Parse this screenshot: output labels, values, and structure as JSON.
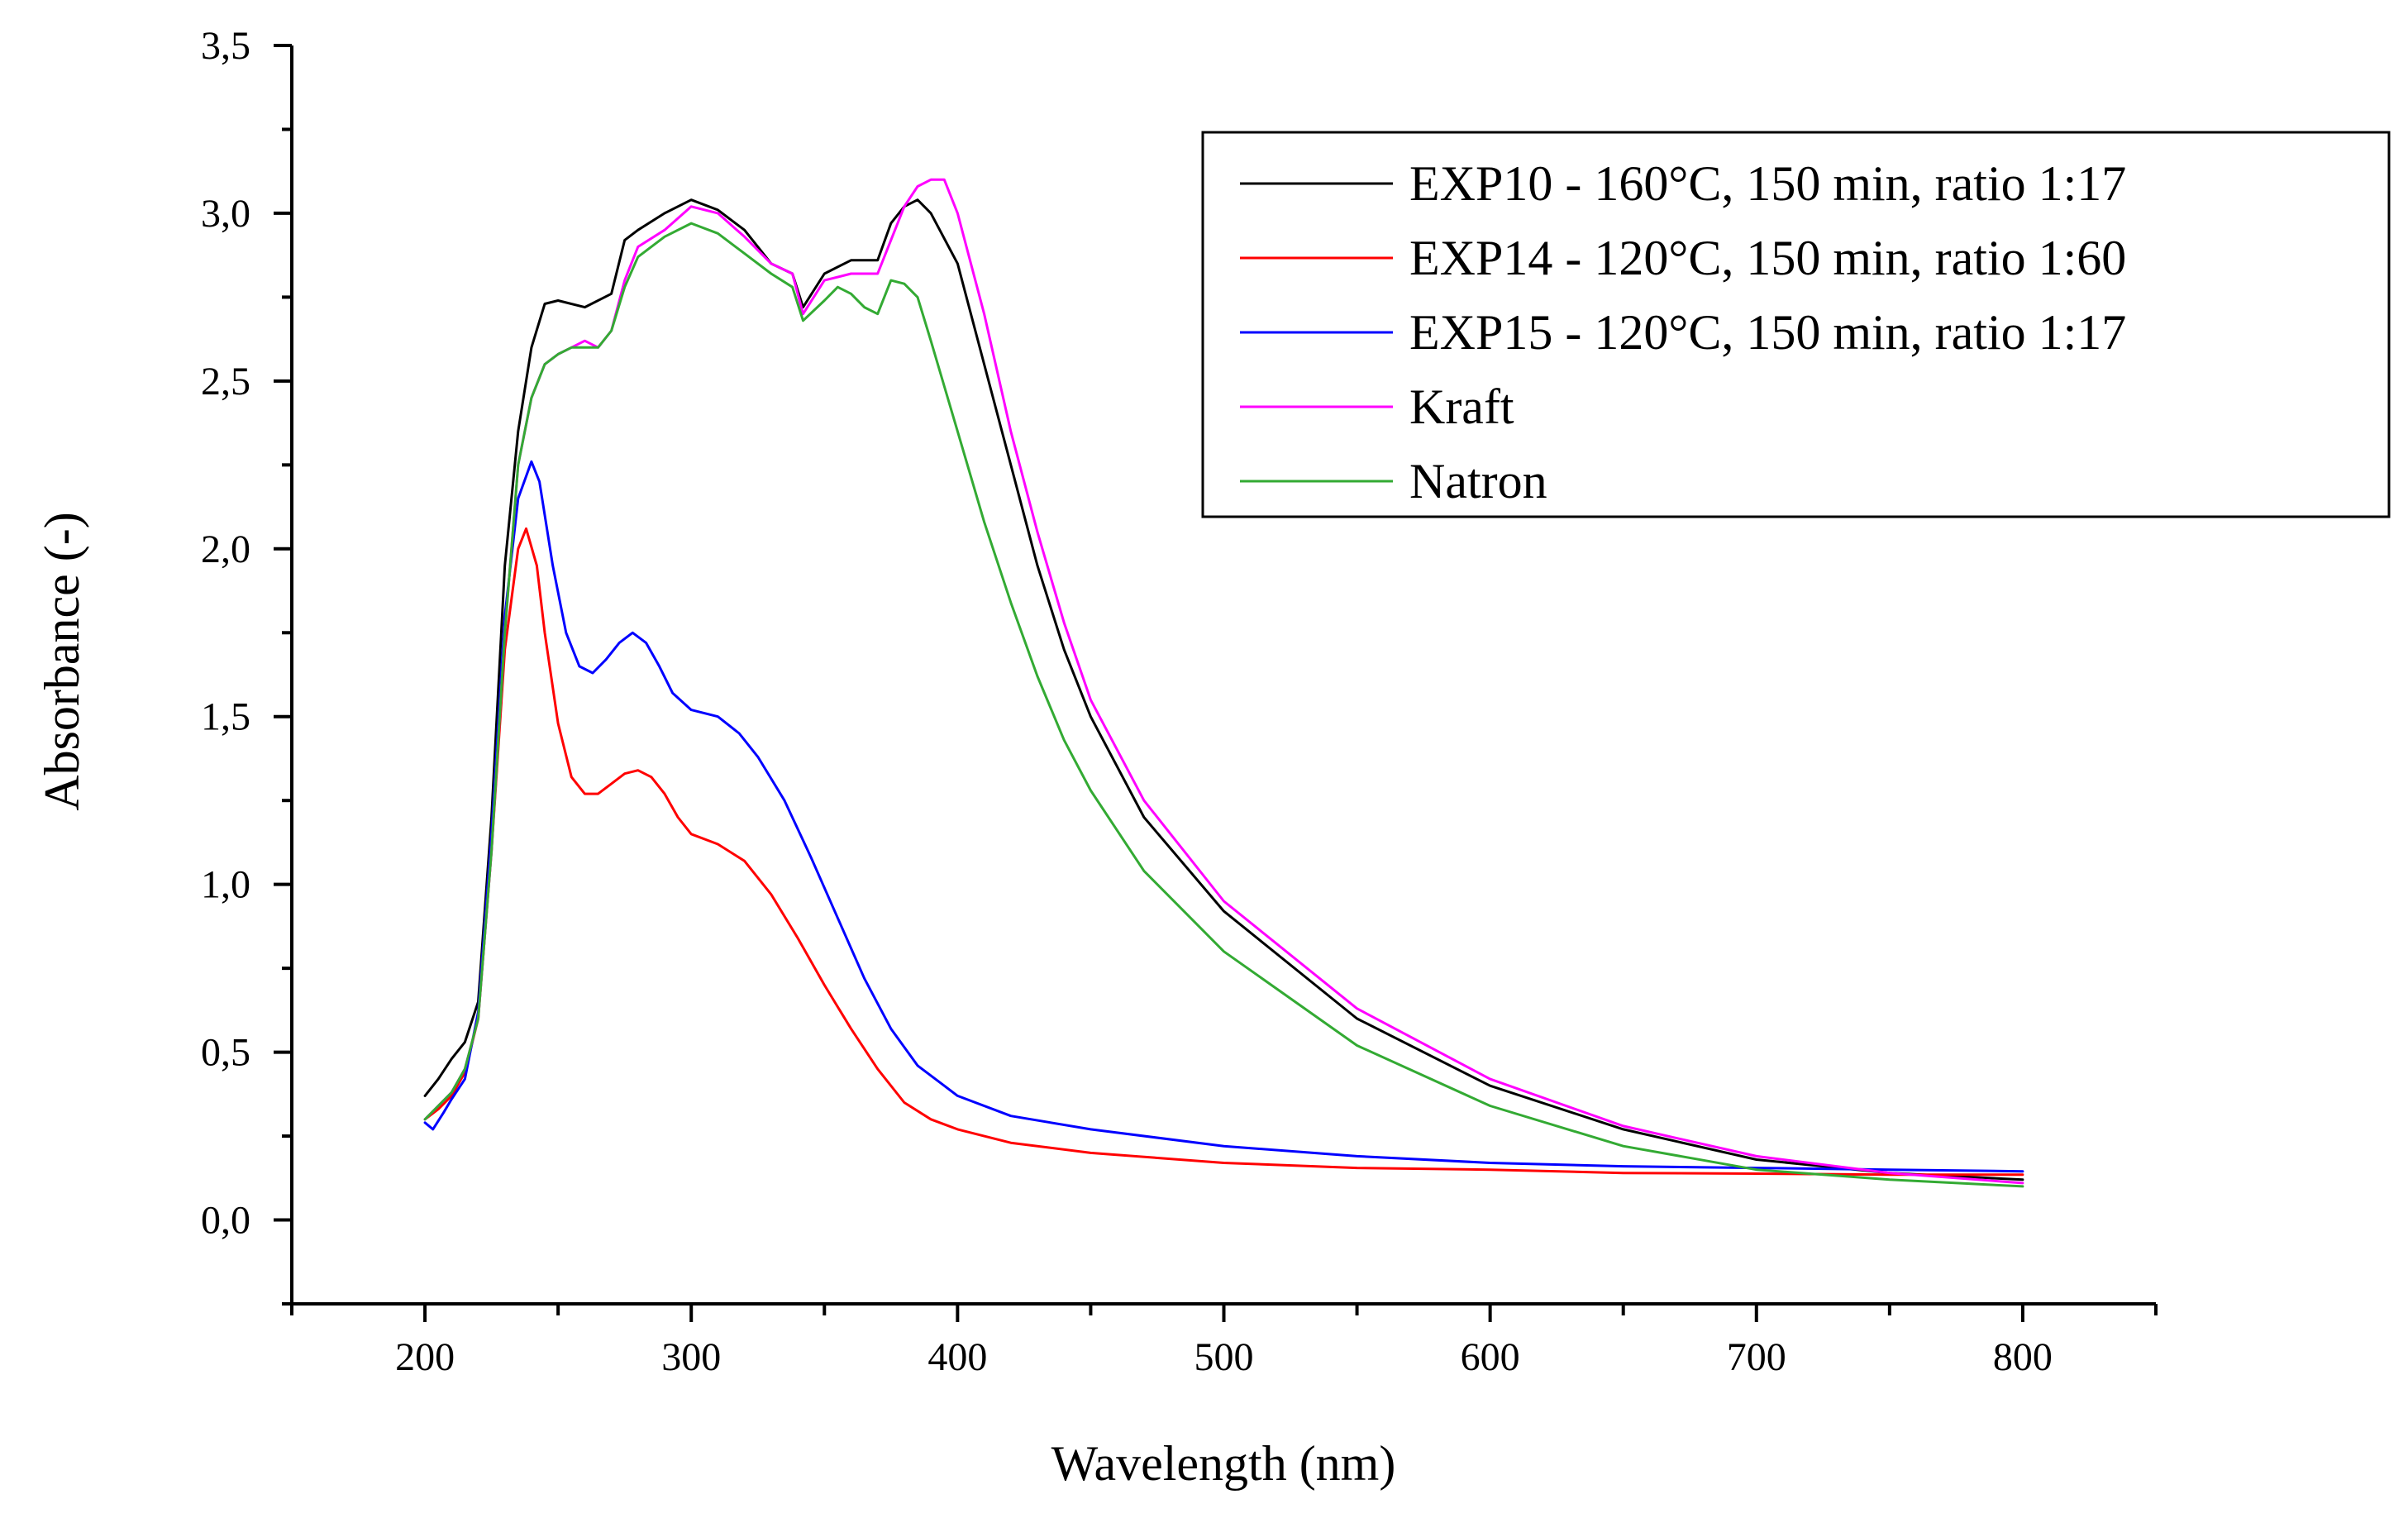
{
  "chart_data": {
    "type": "line",
    "title": "",
    "xlabel": "Wavelength (nm)",
    "ylabel": "Absorbance (-)",
    "xlim": [
      150,
      850
    ],
    "ylim": [
      -0.25,
      3.5
    ],
    "x_ticks": [
      200,
      300,
      400,
      500,
      600,
      700,
      800
    ],
    "x_tick_labels": [
      "200",
      "300",
      "400",
      "500",
      "600",
      "700",
      "800"
    ],
    "y_ticks": [
      0.0,
      0.5,
      1.0,
      1.5,
      2.0,
      2.5,
      3.0,
      3.5
    ],
    "y_tick_labels": [
      "0,0",
      "0,5",
      "1,0",
      "1,5",
      "2,0",
      "2,5",
      "3,0",
      "3,5"
    ],
    "grid": false,
    "legend_position": "top-right",
    "series": [
      {
        "name": "EXP10 - 160°C, 150 min, ratio 1:17",
        "color": "#000000",
        "x": [
          200,
          205,
          210,
          215,
          220,
          225,
          230,
          235,
          240,
          245,
          250,
          260,
          270,
          275,
          280,
          290,
          300,
          310,
          320,
          330,
          338,
          342,
          350,
          360,
          370,
          375,
          380,
          385,
          390,
          400,
          410,
          420,
          430,
          440,
          450,
          470,
          500,
          550,
          600,
          650,
          700,
          750,
          800
        ],
        "y": [
          0.37,
          0.42,
          0.48,
          0.53,
          0.65,
          1.2,
          1.95,
          2.35,
          2.6,
          2.73,
          2.74,
          2.72,
          2.76,
          2.92,
          2.95,
          3.0,
          3.04,
          3.01,
          2.95,
          2.85,
          2.82,
          2.72,
          2.82,
          2.86,
          2.86,
          2.97,
          3.02,
          3.04,
          3.0,
          2.85,
          2.55,
          2.25,
          1.95,
          1.7,
          1.5,
          1.2,
          0.92,
          0.6,
          0.4,
          0.27,
          0.18,
          0.14,
          0.12
        ]
      },
      {
        "name": "EXP14 - 120°C, 150 min, ratio 1:60",
        "color": "#ff0000",
        "x": [
          200,
          205,
          210,
          215,
          220,
          225,
          230,
          235,
          238,
          242,
          245,
          250,
          255,
          260,
          265,
          270,
          275,
          280,
          285,
          290,
          295,
          300,
          310,
          320,
          330,
          340,
          350,
          360,
          370,
          380,
          390,
          400,
          420,
          450,
          500,
          550,
          600,
          650,
          700,
          750,
          800
        ],
        "y": [
          0.3,
          0.33,
          0.37,
          0.44,
          0.6,
          1.1,
          1.7,
          2.0,
          2.06,
          1.95,
          1.75,
          1.48,
          1.32,
          1.27,
          1.27,
          1.3,
          1.33,
          1.34,
          1.32,
          1.27,
          1.2,
          1.15,
          1.12,
          1.07,
          0.97,
          0.84,
          0.7,
          0.57,
          0.45,
          0.35,
          0.3,
          0.27,
          0.23,
          0.2,
          0.17,
          0.155,
          0.15,
          0.14,
          0.138,
          0.135,
          0.135
        ]
      },
      {
        "name": "EXP15 - 120°C, 150 min, ratio 1:17",
        "color": "#0000ff",
        "x": [
          200,
          203,
          207,
          210,
          215,
          220,
          225,
          230,
          235,
          240,
          243,
          248,
          253,
          258,
          263,
          268,
          273,
          278,
          283,
          288,
          293,
          300,
          310,
          318,
          325,
          335,
          345,
          355,
          365,
          375,
          385,
          395,
          400,
          420,
          450,
          500,
          550,
          600,
          650,
          700,
          750,
          800
        ],
        "y": [
          0.29,
          0.27,
          0.32,
          0.36,
          0.42,
          0.62,
          1.15,
          1.8,
          2.15,
          2.26,
          2.2,
          1.95,
          1.75,
          1.65,
          1.63,
          1.67,
          1.72,
          1.75,
          1.72,
          1.65,
          1.57,
          1.52,
          1.5,
          1.45,
          1.38,
          1.25,
          1.08,
          0.9,
          0.72,
          0.57,
          0.46,
          0.4,
          0.37,
          0.31,
          0.27,
          0.22,
          0.19,
          0.17,
          0.16,
          0.155,
          0.15,
          0.145
        ]
      },
      {
        "name": "Kraft",
        "color": "#ff00ff",
        "x": [
          200,
          205,
          210,
          215,
          220,
          225,
          230,
          235,
          240,
          245,
          250,
          255,
          260,
          265,
          270,
          275,
          280,
          290,
          300,
          310,
          320,
          330,
          338,
          342,
          350,
          360,
          370,
          375,
          380,
          385,
          390,
          395,
          400,
          410,
          420,
          430,
          440,
          450,
          470,
          500,
          550,
          600,
          650,
          700,
          750,
          800
        ],
        "y": [
          0.3,
          0.34,
          0.38,
          0.45,
          0.6,
          1.1,
          1.75,
          2.25,
          2.45,
          2.55,
          2.58,
          2.6,
          2.62,
          2.6,
          2.65,
          2.8,
          2.9,
          2.95,
          3.02,
          3.0,
          2.93,
          2.85,
          2.82,
          2.7,
          2.8,
          2.82,
          2.82,
          2.92,
          3.02,
          3.08,
          3.1,
          3.1,
          3.0,
          2.7,
          2.35,
          2.05,
          1.78,
          1.55,
          1.25,
          0.95,
          0.63,
          0.42,
          0.28,
          0.19,
          0.14,
          0.11
        ]
      },
      {
        "name": "Natron",
        "color": "#33aa33",
        "x": [
          200,
          205,
          210,
          215,
          220,
          225,
          230,
          235,
          240,
          245,
          250,
          255,
          260,
          265,
          270,
          275,
          280,
          290,
          300,
          310,
          320,
          330,
          338,
          342,
          350,
          355,
          360,
          365,
          370,
          375,
          380,
          385,
          390,
          400,
          410,
          420,
          430,
          440,
          450,
          470,
          500,
          550,
          600,
          650,
          700,
          750,
          800
        ],
        "y": [
          0.3,
          0.34,
          0.38,
          0.45,
          0.6,
          1.1,
          1.75,
          2.25,
          2.45,
          2.55,
          2.58,
          2.6,
          2.6,
          2.6,
          2.65,
          2.78,
          2.87,
          2.93,
          2.97,
          2.94,
          2.88,
          2.82,
          2.78,
          2.68,
          2.74,
          2.78,
          2.76,
          2.72,
          2.7,
          2.8,
          2.79,
          2.75,
          2.62,
          2.35,
          2.08,
          1.84,
          1.62,
          1.43,
          1.28,
          1.04,
          0.8,
          0.52,
          0.34,
          0.22,
          0.15,
          0.12,
          0.1
        ]
      }
    ]
  }
}
